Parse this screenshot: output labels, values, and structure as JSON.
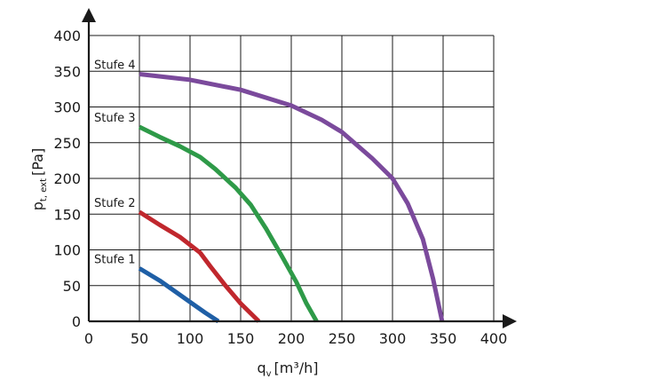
{
  "chart_data": {
    "type": "line",
    "xlabel": "q",
    "xlabel_sub": "v",
    "xlabel_unit": "[m³/h]",
    "ylabel": "p",
    "ylabel_sub": "t, ext",
    "ylabel_unit": "[Pa]",
    "xlim": [
      0,
      400
    ],
    "ylim": [
      0,
      400
    ],
    "x_ticks": [
      "0",
      "50",
      "100",
      "150",
      "200",
      "250",
      "300",
      "350",
      "400"
    ],
    "y_ticks": [
      "0",
      "50",
      "100",
      "150",
      "200",
      "250",
      "300",
      "350",
      "400"
    ],
    "grid": true,
    "series": [
      {
        "name": "Stufe 1",
        "color": "#1f5fa6",
        "points": [
          [
            50,
            74
          ],
          [
            70,
            57
          ],
          [
            90,
            37
          ],
          [
            105,
            22
          ],
          [
            115,
            12
          ],
          [
            128,
            0
          ]
        ]
      },
      {
        "name": "Stufe 2",
        "color": "#c0272d",
        "points": [
          [
            50,
            153
          ],
          [
            70,
            135
          ],
          [
            90,
            118
          ],
          [
            110,
            96
          ],
          [
            120,
            77
          ],
          [
            135,
            50
          ],
          [
            150,
            25
          ],
          [
            168,
            0
          ]
        ]
      },
      {
        "name": "Stufe 3",
        "color": "#2e9a48",
        "points": [
          [
            50,
            272
          ],
          [
            70,
            258
          ],
          [
            90,
            245
          ],
          [
            110,
            230
          ],
          [
            125,
            213
          ],
          [
            145,
            187
          ],
          [
            160,
            163
          ],
          [
            175,
            130
          ],
          [
            190,
            93
          ],
          [
            205,
            55
          ],
          [
            215,
            25
          ],
          [
            225,
            0
          ]
        ]
      },
      {
        "name": "Stufe 4",
        "color": "#7b4a9c",
        "points": [
          [
            50,
            346
          ],
          [
            100,
            338
          ],
          [
            150,
            324
          ],
          [
            200,
            302
          ],
          [
            230,
            282
          ],
          [
            250,
            265
          ],
          [
            280,
            228
          ],
          [
            300,
            200
          ],
          [
            315,
            165
          ],
          [
            330,
            115
          ],
          [
            340,
            60
          ],
          [
            349,
            0
          ]
        ]
      }
    ]
  }
}
